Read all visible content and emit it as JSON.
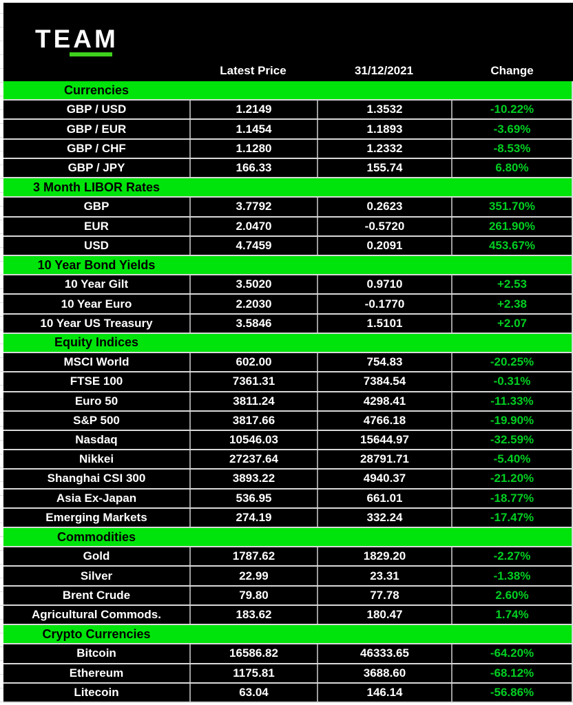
{
  "logo": {
    "text": "TEAM"
  },
  "table": {
    "headers": {
      "latest_price": "Latest Price",
      "prior_date": "31/12/2021",
      "change": "Change"
    },
    "sections": [
      {
        "title": "Currencies",
        "rows": [
          {
            "label": "GBP / USD",
            "latest": "1.2149",
            "prior": "1.3532",
            "change": "-10.22%"
          },
          {
            "label": "GBP / EUR",
            "latest": "1.1454",
            "prior": "1.1893",
            "change": "-3.69%"
          },
          {
            "label": "GBP / CHF",
            "latest": "1.1280",
            "prior": "1.2332",
            "change": "-8.53%"
          },
          {
            "label": "GBP / JPY",
            "latest": "166.33",
            "prior": "155.74",
            "change": "6.80%"
          }
        ]
      },
      {
        "title": "3 Month LIBOR Rates",
        "rows": [
          {
            "label": "GBP",
            "latest": "3.7792",
            "prior": "0.2623",
            "change": "351.70%"
          },
          {
            "label": "EUR",
            "latest": "2.0470",
            "prior": "-0.5720",
            "change": "261.90%"
          },
          {
            "label": "USD",
            "latest": "4.7459",
            "prior": "0.2091",
            "change": "453.67%"
          }
        ]
      },
      {
        "title": "10 Year Bond Yields",
        "rows": [
          {
            "label": "10 Year Gilt",
            "latest": "3.5020",
            "prior": "0.9710",
            "change": "+2.53"
          },
          {
            "label": "10 Year Euro",
            "latest": "2.2030",
            "prior": "-0.1770",
            "change": "+2.38"
          },
          {
            "label": "10 Year US Treasury",
            "latest": "3.5846",
            "prior": "1.5101",
            "change": "+2.07"
          }
        ]
      },
      {
        "title": "Equity Indices",
        "rows": [
          {
            "label": "MSCI World",
            "latest": "602.00",
            "prior": "754.83",
            "change": "-20.25%"
          },
          {
            "label": "FTSE 100",
            "latest": "7361.31",
            "prior": "7384.54",
            "change": "-0.31%"
          },
          {
            "label": "Euro 50",
            "latest": "3811.24",
            "prior": "4298.41",
            "change": "-11.33%"
          },
          {
            "label": "S&P 500",
            "latest": "3817.66",
            "prior": "4766.18",
            "change": "-19.90%"
          },
          {
            "label": "Nasdaq",
            "latest": "10546.03",
            "prior": "15644.97",
            "change": "-32.59%"
          },
          {
            "label": "Nikkei",
            "latest": "27237.64",
            "prior": "28791.71",
            "change": "-5.40%"
          },
          {
            "label": "Shanghai CSI 300",
            "latest": "3893.22",
            "prior": "4940.37",
            "change": "-21.20%"
          },
          {
            "label": "Asia Ex-Japan",
            "latest": "536.95",
            "prior": "661.01",
            "change": "-18.77%"
          },
          {
            "label": "Emerging Markets",
            "latest": "274.19",
            "prior": "332.24",
            "change": "-17.47%"
          }
        ]
      },
      {
        "title": "Commodities",
        "rows": [
          {
            "label": "Gold",
            "latest": "1787.62",
            "prior": "1829.20",
            "change": "-2.27%"
          },
          {
            "label": "Silver",
            "latest": "22.99",
            "prior": "23.31",
            "change": "-1.38%"
          },
          {
            "label": "Brent Crude",
            "latest": "79.80",
            "prior": "77.78",
            "change": "2.60%"
          },
          {
            "label": "Agricultural Commods.",
            "latest": "183.62",
            "prior": "180.47",
            "change": "1.74%"
          }
        ]
      },
      {
        "title": "Crypto Currencies",
        "rows": [
          {
            "label": "Bitcoin",
            "latest": "16586.82",
            "prior": "46333.65",
            "change": "-64.20%"
          },
          {
            "label": "Ethereum",
            "latest": "1175.81",
            "prior": "3688.60",
            "change": "-68.12%"
          },
          {
            "label": "Litecoin",
            "latest": "63.04",
            "prior": "146.14",
            "change": "-56.86%"
          }
        ]
      }
    ]
  },
  "colors": {
    "background_black": "#000000",
    "text_white": "#ffffff",
    "section_band_green": "#00e40c",
    "change_text_green": "#00cf22",
    "logo_underline_green": "#3ed21c",
    "row_border": "#d9d9d9",
    "column_border": "#9e9e9e"
  }
}
